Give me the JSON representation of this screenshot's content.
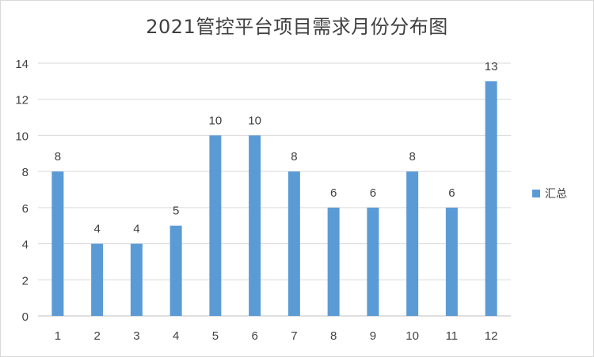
{
  "chart_data": {
    "type": "bar",
    "title": "2021管控平台项目需求月份分布图",
    "categories": [
      "1",
      "2",
      "3",
      "4",
      "5",
      "6",
      "7",
      "8",
      "9",
      "10",
      "11",
      "12"
    ],
    "series": [
      {
        "name": "汇总",
        "values": [
          8,
          4,
          4,
          5,
          10,
          10,
          8,
          6,
          6,
          8,
          6,
          13
        ],
        "color": "#5b9bd5"
      }
    ],
    "ylim": [
      0,
      14
    ],
    "yticks": [
      0,
      2,
      4,
      6,
      8,
      10,
      12,
      14
    ],
    "grid": true,
    "legend_position": "right",
    "data_labels": true
  }
}
